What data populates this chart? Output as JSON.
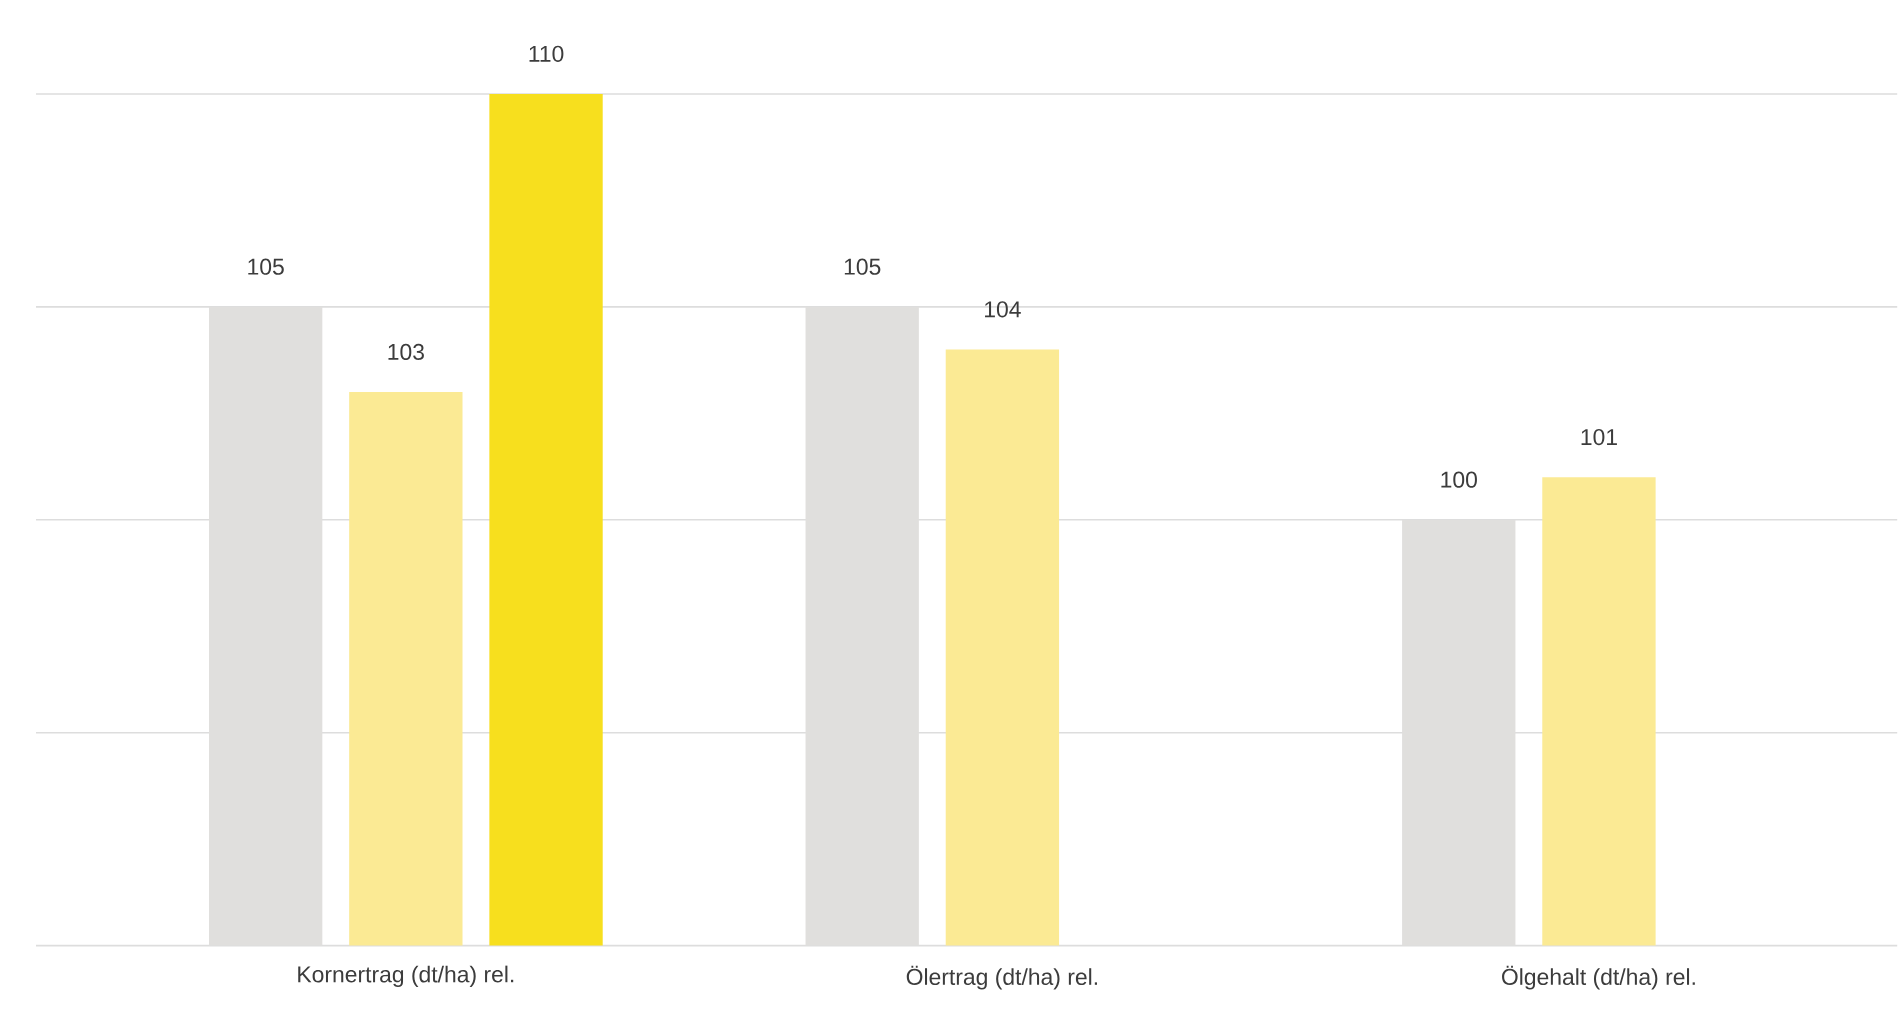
{
  "chart_data": {
    "type": "bar",
    "categories": [
      "Kornertrag (dt/ha) rel.",
      "Ölertrag (dt/ha) rel.",
      "Ölgehalt (dt/ha) rel."
    ],
    "series": [
      {
        "color": "#e0dfdd",
        "values": [
          105,
          105,
          100
        ]
      },
      {
        "color": "#fbea94",
        "values": [
          103,
          104,
          101
        ]
      },
      {
        "color": "#f7df1e",
        "values": [
          110,
          null,
          null
        ]
      }
    ],
    "ylim": [
      90,
      110
    ],
    "yticks": [
      {
        "value": 90,
        "label": null
      },
      {
        "value": 95,
        "label": null
      },
      {
        "value": 100,
        "label": null
      },
      {
        "value": 105,
        "label": null
      },
      {
        "value": 110,
        "label": null
      }
    ],
    "grid": "y",
    "tick_labels": "x",
    "data_labels": true
  }
}
